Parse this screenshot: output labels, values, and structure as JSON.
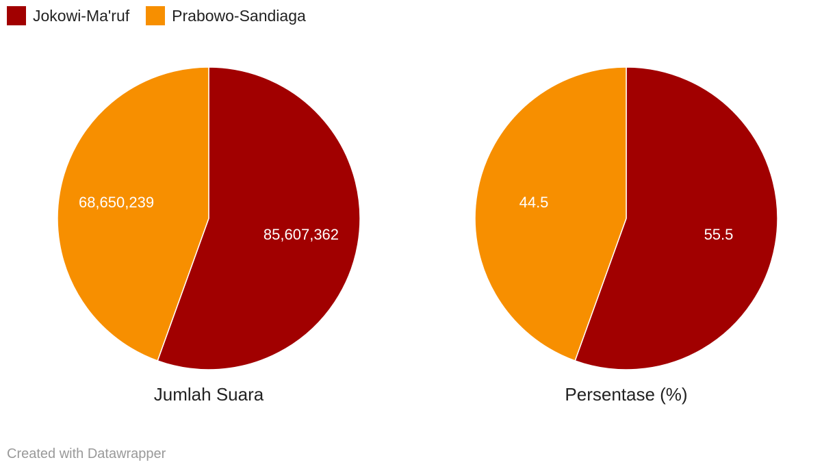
{
  "legend": [
    {
      "label": "Jokowi-Ma'ruf",
      "color": "#a10000"
    },
    {
      "label": "Prabowo-Sandiaga",
      "color": "#f78f00"
    }
  ],
  "chart_data": [
    {
      "type": "pie",
      "title": "Jumlah Suara",
      "categories": [
        "Jokowi-Ma'ruf",
        "Prabowo-Sandiaga"
      ],
      "values": [
        85607362,
        68650239
      ],
      "value_labels": [
        "85,607,362",
        "68,650,239"
      ],
      "colors": [
        "#a10000",
        "#f78f00"
      ]
    },
    {
      "type": "pie",
      "title": "Persentase (%)",
      "categories": [
        "Jokowi-Ma'ruf",
        "Prabowo-Sandiaga"
      ],
      "values": [
        55.5,
        44.5
      ],
      "value_labels": [
        "55.5",
        "44.5"
      ],
      "colors": [
        "#a10000",
        "#f78f00"
      ]
    }
  ],
  "footer": {
    "credit": "Created with Datawrapper"
  }
}
